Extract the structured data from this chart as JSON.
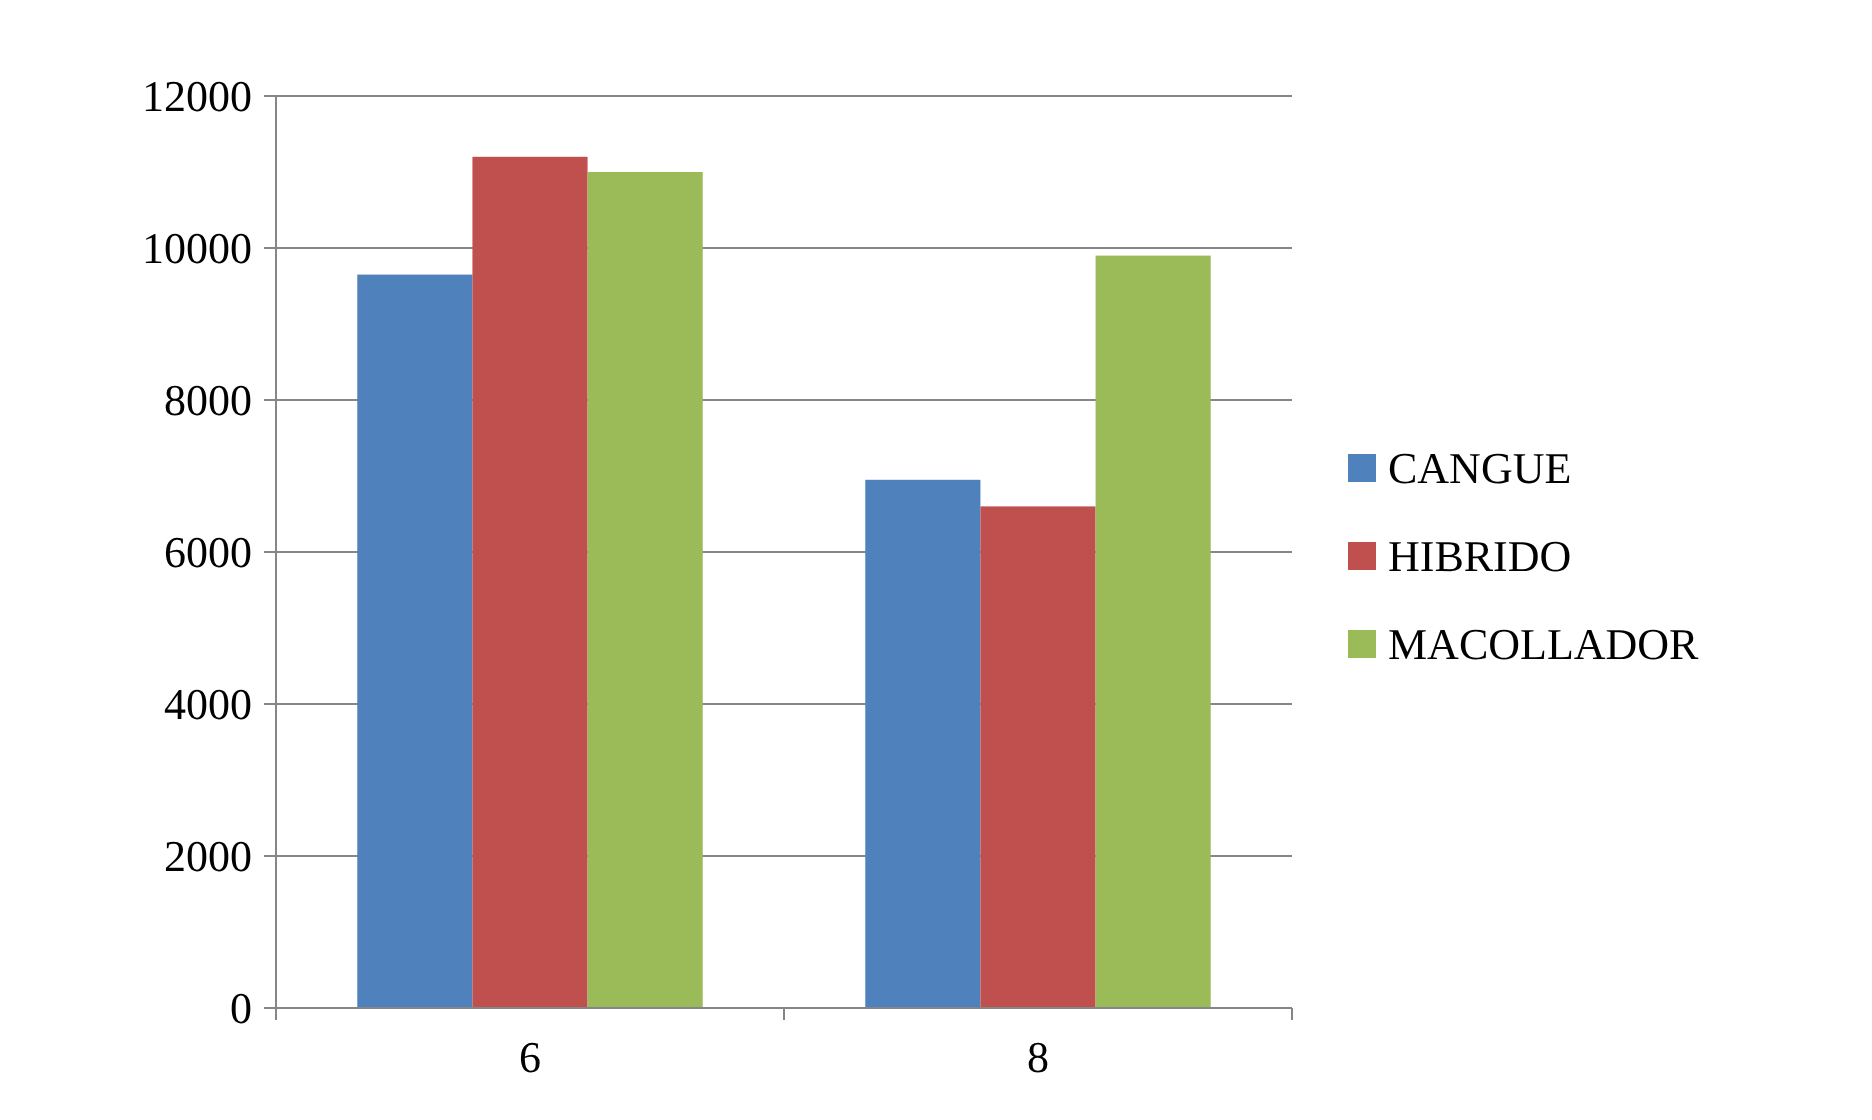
{
  "chart_data": {
    "type": "bar",
    "categories": [
      "6",
      "8"
    ],
    "series": [
      {
        "name": "CANGUE",
        "color": "#4f81bd",
        "values": [
          9650,
          6950
        ]
      },
      {
        "name": "HIBRIDO",
        "color": "#c0504d",
        "values": [
          11200,
          6600
        ]
      },
      {
        "name": "MACOLLADOR",
        "color": "#9bbb59",
        "values": [
          11000,
          9900
        ]
      }
    ],
    "ylim": [
      0,
      12000
    ],
    "yticks": [
      0,
      2000,
      4000,
      6000,
      8000,
      10000,
      12000
    ],
    "grid": "y",
    "legend": "right"
  }
}
